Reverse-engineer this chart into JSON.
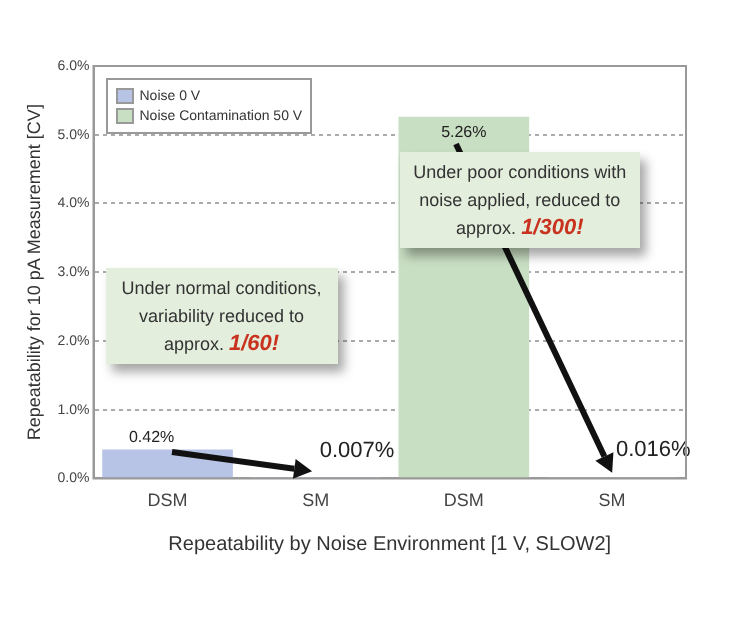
{
  "chart_data": {
    "type": "bar",
    "ylabel": "Repeatability for 10 pA Measurement [CV]",
    "xlabel": "Repeatability by Noise Environment [1 V, SLOW2]",
    "categories": [
      "DSM",
      "SM",
      "DSM",
      "SM"
    ],
    "series": [
      {
        "name": "Noise 0 V",
        "color": "#b7c4e6",
        "values": [
          0.42,
          0.007,
          null,
          null
        ],
        "value_labels": [
          "0.42%",
          "0.007%",
          null,
          null
        ]
      },
      {
        "name": "Noise Contamination 50 V",
        "color": "#c9dfc3",
        "values": [
          null,
          null,
          5.26,
          0.016
        ],
        "value_labels": [
          null,
          null,
          "5.26%",
          "0.016%"
        ]
      }
    ],
    "ylim": [
      0,
      6
    ],
    "yticks": [
      {
        "value": 0,
        "label": "0.0%"
      },
      {
        "value": 1,
        "label": "1.0%"
      },
      {
        "value": 2,
        "label": "2.0%"
      },
      {
        "value": 3,
        "label": "3.0%"
      },
      {
        "value": 4,
        "label": "4.0%"
      },
      {
        "value": 5,
        "label": "5.0%"
      },
      {
        "value": 6,
        "label": "6.0%"
      }
    ],
    "grid": "y",
    "legend": "top left",
    "annotations": [
      "Under normal conditions, variability reduced to approx. 1/60!",
      "Under poor conditions with noise applied, reduced to approx. 1/300!"
    ]
  }
}
